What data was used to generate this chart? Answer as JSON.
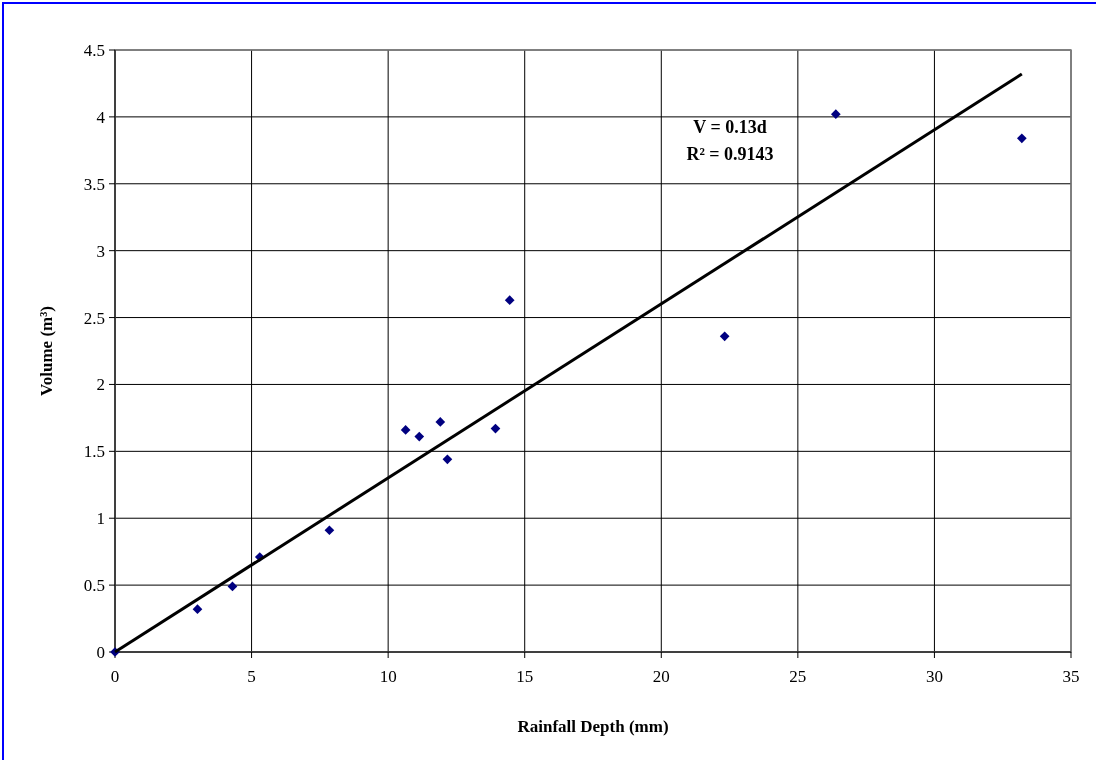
{
  "chart_data": {
    "type": "scatter",
    "xlabel": "Rainfall Depth (mm)",
    "ylabel": "Volume (m³)",
    "annotations": [
      "V = 0.13d",
      "R² = 0.9143"
    ],
    "series": [
      {
        "color": "#000080",
        "marker": "diamond",
        "x": [
          0,
          3.02,
          4.3,
          5.3,
          7.85,
          10.64,
          11.14,
          11.91,
          12.17,
          13.93,
          14.45,
          22.32,
          26.39,
          33.2
        ],
        "values": [
          0,
          0.32,
          0.49,
          0.71,
          0.91,
          1.66,
          1.61,
          1.72,
          1.44,
          1.67,
          2.63,
          2.36,
          4.02,
          3.84
        ]
      },
      {
        "type": "line",
        "color": "#000000",
        "marker": "none",
        "x": [
          0,
          33.2
        ],
        "values": [
          0,
          4.32
        ]
      }
    ],
    "xlim": [
      0,
      35
    ],
    "xticks": [
      0,
      5,
      10,
      15,
      20,
      25,
      30,
      35
    ],
    "ylim": [
      0,
      4.5
    ],
    "yticks": [
      0,
      0.5,
      1,
      1.5,
      2,
      2.5,
      3,
      3.5,
      4,
      4.5
    ],
    "grid": true
  }
}
